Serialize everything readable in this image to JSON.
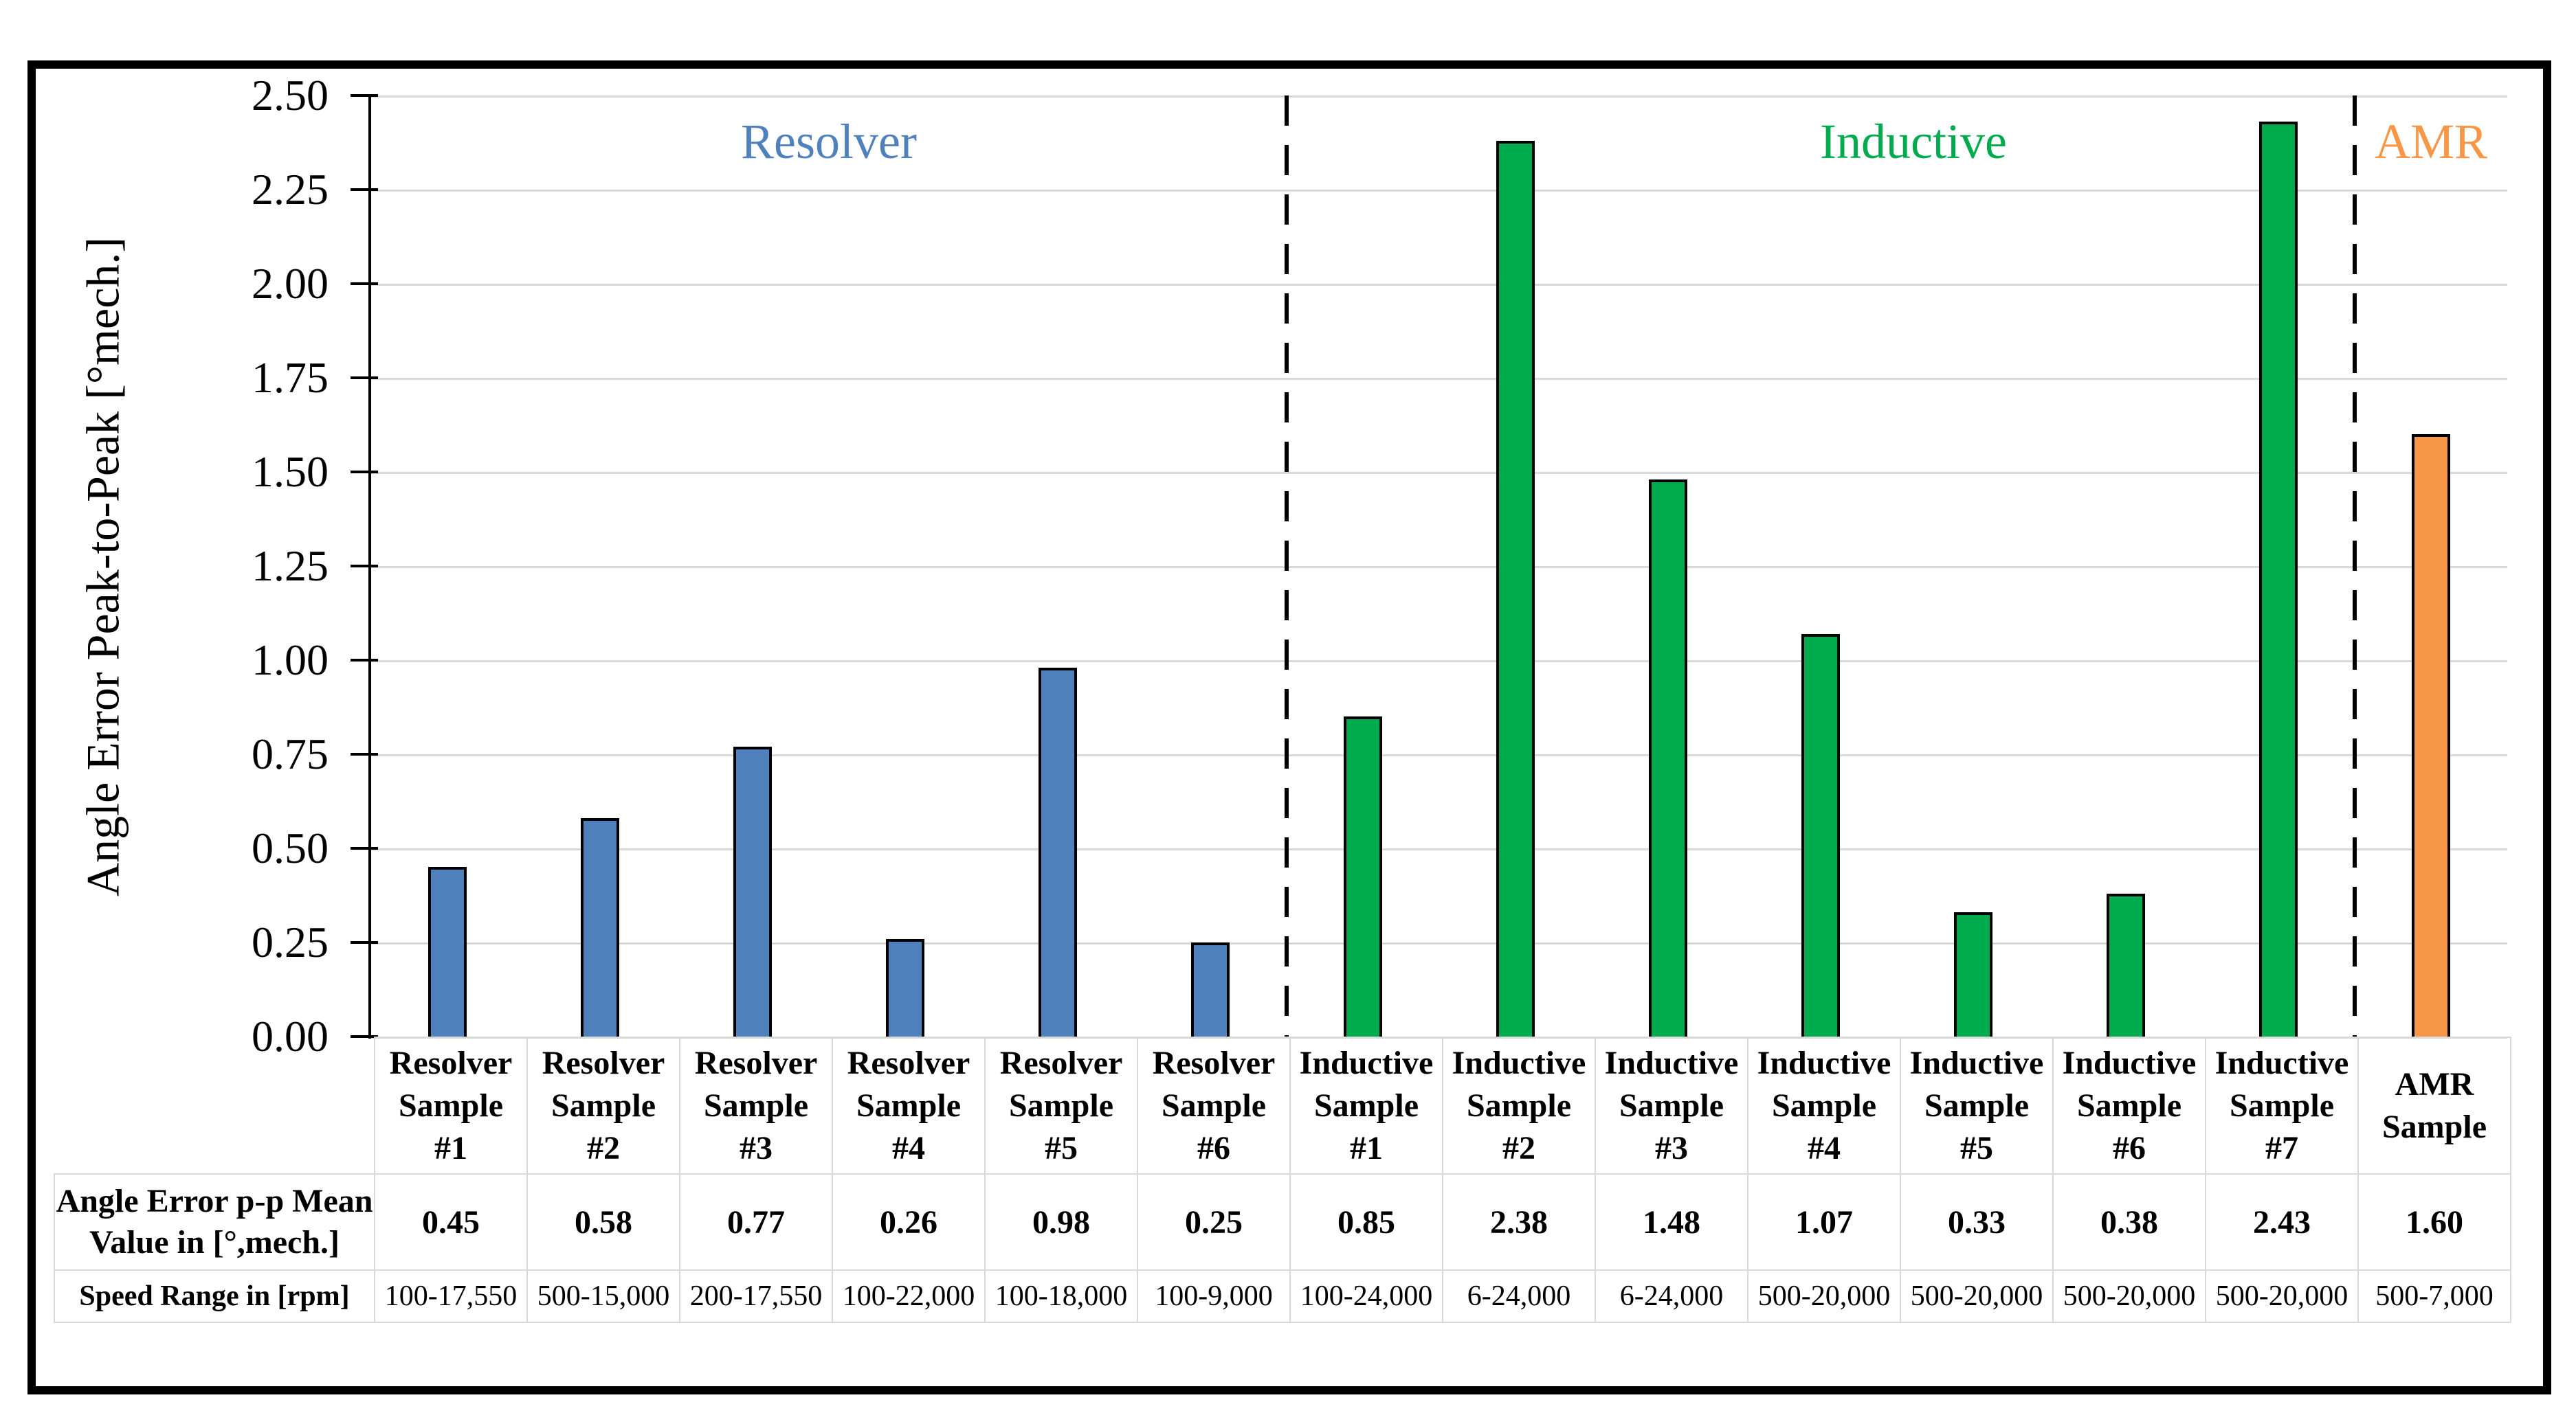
{
  "chart": {
    "y_axis_title": "Angle Error Peak-to-Peak [°mech.]",
    "y_tick_labels": [
      "2.50",
      "2.25",
      "2.00",
      "1.75",
      "1.50",
      "1.25",
      "1.00",
      "0.75",
      "0.50",
      "0.25",
      "0.00"
    ],
    "sections": [
      {
        "label": "Resolver",
        "color": "#4F81BD",
        "span": 6
      },
      {
        "label": "Inductive",
        "color": "#00AB4E",
        "span": 7
      },
      {
        "label": "AMR",
        "color": "#F79646",
        "span": 1
      }
    ],
    "gridline_color": "#D9D9D9",
    "bar_outline_color": "#000000"
  },
  "table": {
    "mean_row_header_lines": [
      "Angle Error p-p Mean",
      "Value in [°,mech.]"
    ],
    "speed_row_header": "Speed Range in [rpm]",
    "columns": [
      {
        "label_lines": [
          "Resolver",
          "Sample",
          "#1"
        ],
        "mean": "0.45",
        "speed": "100-17,550"
      },
      {
        "label_lines": [
          "Resolver",
          "Sample",
          "#2"
        ],
        "mean": "0.58",
        "speed": "500-15,000"
      },
      {
        "label_lines": [
          "Resolver",
          "Sample",
          "#3"
        ],
        "mean": "0.77",
        "speed": "200-17,550"
      },
      {
        "label_lines": [
          "Resolver",
          "Sample",
          "#4"
        ],
        "mean": "0.26",
        "speed": "100-22,000"
      },
      {
        "label_lines": [
          "Resolver",
          "Sample",
          "#5"
        ],
        "mean": "0.98",
        "speed": "100-18,000"
      },
      {
        "label_lines": [
          "Resolver",
          "Sample",
          "#6"
        ],
        "mean": "0.25",
        "speed": "100-9,000"
      },
      {
        "label_lines": [
          "Inductive",
          "Sample",
          "#1"
        ],
        "mean": "0.85",
        "speed": "100-24,000"
      },
      {
        "label_lines": [
          "Inductive",
          "Sample",
          "#2"
        ],
        "mean": "2.38",
        "speed": "6-24,000"
      },
      {
        "label_lines": [
          "Inductive",
          "Sample",
          "#3"
        ],
        "mean": "1.48",
        "speed": "6-24,000"
      },
      {
        "label_lines": [
          "Inductive",
          "Sample",
          "#4"
        ],
        "mean": "1.07",
        "speed": "500-20,000"
      },
      {
        "label_lines": [
          "Inductive",
          "Sample",
          "#5"
        ],
        "mean": "0.33",
        "speed": "500-20,000"
      },
      {
        "label_lines": [
          "Inductive",
          "Sample",
          "#6"
        ],
        "mean": "0.38",
        "speed": "500-20,000"
      },
      {
        "label_lines": [
          "Inductive",
          "Sample",
          "#7"
        ],
        "mean": "2.43",
        "speed": "500-20,000"
      },
      {
        "label_lines": [
          "AMR",
          "Sample"
        ],
        "mean": "1.60",
        "speed": "500-7,000"
      }
    ]
  },
  "chart_data": {
    "type": "bar",
    "title": "",
    "xlabel": "",
    "ylabel": "Angle Error Peak-to-Peak [°mech.]",
    "ylim": [
      0,
      2.5
    ],
    "ytick_step": 0.25,
    "grid": "horizontal",
    "legend": "none",
    "categories": [
      "Resolver Sample #1",
      "Resolver Sample #2",
      "Resolver Sample #3",
      "Resolver Sample #4",
      "Resolver Sample #5",
      "Resolver Sample #6",
      "Inductive Sample #1",
      "Inductive Sample #2",
      "Inductive Sample #3",
      "Inductive Sample #4",
      "Inductive Sample #5",
      "Inductive Sample #6",
      "Inductive Sample #7",
      "AMR Sample"
    ],
    "values": [
      0.45,
      0.58,
      0.77,
      0.26,
      0.98,
      0.25,
      0.85,
      2.38,
      1.48,
      1.07,
      0.33,
      0.38,
      2.43,
      1.6
    ],
    "groups": [
      "Resolver",
      "Resolver",
      "Resolver",
      "Resolver",
      "Resolver",
      "Resolver",
      "Inductive",
      "Inductive",
      "Inductive",
      "Inductive",
      "Inductive",
      "Inductive",
      "Inductive",
      "AMR"
    ],
    "group_colors": {
      "Resolver": "#4F81BD",
      "Inductive": "#00AB4E",
      "AMR": "#F79646"
    },
    "separators_after_index": [
      5,
      12
    ],
    "table_rows": [
      {
        "header": "Angle Error p-p Mean Value in [°,mech.]",
        "values": [
          "0.45",
          "0.58",
          "0.77",
          "0.26",
          "0.98",
          "0.25",
          "0.85",
          "2.38",
          "1.48",
          "1.07",
          "0.33",
          "0.38",
          "2.43",
          "1.60"
        ]
      },
      {
        "header": "Speed Range in [rpm]",
        "values": [
          "100-17,550",
          "500-15,000",
          "200-17,550",
          "100-22,000",
          "100-18,000",
          "100-9,000",
          "100-24,000",
          "6-24,000",
          "6-24,000",
          "500-20,000",
          "500-20,000",
          "500-20,000",
          "500-20,000",
          "500-7,000"
        ]
      }
    ]
  }
}
